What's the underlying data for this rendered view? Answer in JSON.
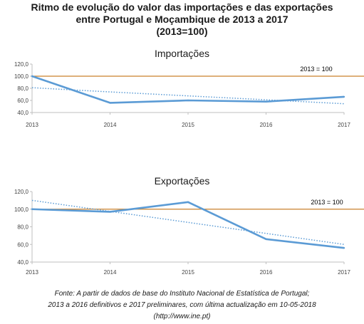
{
  "title": {
    "line1": "Ritmo de evolução do valor das importações e das exportações",
    "line2": "entre Portugal e Moçambique de 2013 a 2017",
    "line3": "(2013=100)"
  },
  "source": {
    "line1": "Fonte: A partir de dados de base do Instituto Nacional de Estatística de Portugal;",
    "line2": "2013 a 2016 definitivos e 2017 preliminares, com última actualização em 10-05-2018",
    "line3": "(http://www.ine.pt)"
  },
  "colors": {
    "series": "#5b9bd5",
    "reference": "#c9812b",
    "axis": "#bfbfbf"
  },
  "chart_data": [
    {
      "type": "line",
      "title": "Importações",
      "x": [
        "2013",
        "2014",
        "2015",
        "2016",
        "2017"
      ],
      "series": [
        {
          "values": [
            100.0,
            56.0,
            60.0,
            58.0,
            66.0
          ]
        }
      ],
      "trendline": {
        "style": "dotted",
        "values": [
          81.0,
          74.0,
          67.5,
          61.0,
          54.5
        ]
      },
      "reference_line": {
        "value": 100,
        "label": "2013 = 100"
      },
      "yticks": [
        "40,0",
        "60,0",
        "80,0",
        "100,0",
        "120,0"
      ],
      "ylim": [
        40,
        120
      ],
      "grid": false
    },
    {
      "type": "line",
      "title": "Exportações",
      "x": [
        "2013",
        "2014",
        "2015",
        "2016",
        "2017"
      ],
      "series": [
        {
          "values": [
            100.0,
            97.0,
            108.0,
            66.0,
            56.0
          ]
        }
      ],
      "trendline": {
        "style": "dotted",
        "values": [
          110.0,
          97.5,
          85.0,
          72.5,
          60.0
        ]
      },
      "reference_line": {
        "value": 100,
        "label": "2013 = 100"
      },
      "yticks": [
        "40,0",
        "60,0",
        "80,0",
        "100,0",
        "120,0"
      ],
      "ylim": [
        40,
        120
      ],
      "grid": false
    }
  ]
}
